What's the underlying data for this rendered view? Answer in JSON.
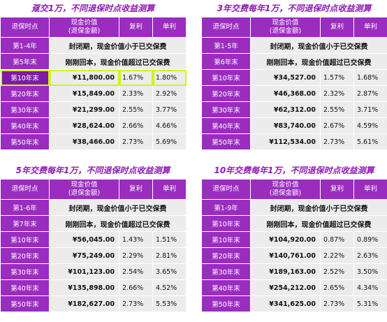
{
  "panels": [
    {
      "title": "趸交1万，不同退保时点收益测算",
      "header": {
        "time": "退保时点",
        "cash1": "现金价值",
        "cash2": "(退保金额)",
        "compound": "复利",
        "simple": "单利"
      },
      "closed": [
        {
          "label": "第1-4年",
          "msg": "封闭期，现金价值小于已交保费"
        },
        {
          "label": "第5年末",
          "msg": "刚刚回本，现金价值超过已交保费"
        }
      ],
      "rows": [
        {
          "label": "第10年末",
          "value": "¥11,800.00",
          "compound": "1.67%",
          "simple": "1.80%",
          "highlight": true
        },
        {
          "label": "第20年末",
          "value": "¥15,849.00",
          "compound": "2.33%",
          "simple": "2.92%"
        },
        {
          "label": "第30年末",
          "value": "¥21,299.00",
          "compound": "2.55%",
          "simple": "3.77%"
        },
        {
          "label": "第40年末",
          "value": "¥28,624.00",
          "compound": "2.66%",
          "simple": "4.66%"
        },
        {
          "label": "第50年末",
          "value": "¥38,466.00",
          "compound": "2.73%",
          "simple": "5.69%"
        }
      ]
    },
    {
      "title": "3年交费每年1万，不同退保时点收益测算",
      "header": {
        "time": "退保时点",
        "cash1": "现金价值",
        "cash2": "(退保金额)",
        "compound": "复利",
        "simple": "单利"
      },
      "closed": [
        {
          "label": "第1-5年",
          "msg": "封闭期，现金价值小于已交保费"
        },
        {
          "label": "第6年末",
          "msg": "刚刚回本，现金价值超过已交保费"
        }
      ],
      "rows": [
        {
          "label": "第10年末",
          "value": "¥34,527.00",
          "compound": "1.57%",
          "simple": "1.68%"
        },
        {
          "label": "第20年末",
          "value": "¥46,368.00",
          "compound": "2.32%",
          "simple": "2.87%"
        },
        {
          "label": "第30年末",
          "value": "¥62,312.00",
          "compound": "2.55%",
          "simple": "3.71%"
        },
        {
          "label": "第40年末",
          "value": "¥83,740.00",
          "compound": "2.67%",
          "simple": "4.59%"
        },
        {
          "label": "第50年末",
          "value": "¥112,534.00",
          "compound": "2.73%",
          "simple": "5.61%"
        }
      ]
    },
    {
      "title": "5年交费每年1万，不同退保时点收益测算",
      "header": {
        "time": "退保时点",
        "cash1": "现金价值",
        "cash2": "(退保金额)",
        "compound": "复利",
        "simple": "单利"
      },
      "closed": [
        {
          "label": "第1-6年",
          "msg": "封闭期，现金价值小于已交保费"
        },
        {
          "label": "第7年末",
          "msg": "刚刚回本，现金价值超过已交保费"
        }
      ],
      "rows": [
        {
          "label": "第10年末",
          "value": "¥56,045.00",
          "compound": "1.43%",
          "simple": "1.51%"
        },
        {
          "label": "第20年末",
          "value": "¥75,249.00",
          "compound": "2.29%",
          "simple": "2.81%"
        },
        {
          "label": "第30年末",
          "value": "¥101,123.00",
          "compound": "2.54%",
          "simple": "3.65%"
        },
        {
          "label": "第40年末",
          "value": "¥135,898.00",
          "compound": "2.66%",
          "simple": "4.52%"
        },
        {
          "label": "第50年末",
          "value": "¥182,627.00",
          "compound": "2.73%",
          "simple": "5.53%"
        }
      ]
    },
    {
      "title": "10年交费每年1万，不同退保时点收益测算",
      "header": {
        "time": "退保时点",
        "cash1": "现金价值",
        "cash2": "(退保金额)",
        "compound": "复利",
        "simple": "单利"
      },
      "closed": [
        {
          "label": "第1-9年",
          "msg": "封闭期，现金价值小于已交保费"
        },
        {
          "label": "第10年末",
          "msg": "刚刚回本，现金价值超过已交保费"
        }
      ],
      "rows": [
        {
          "label": "第10年末",
          "value": "¥104,920.00",
          "compound": "0.87%",
          "simple": "0.89%"
        },
        {
          "label": "第20年末",
          "value": "¥140,761.00",
          "compound": "2.22%",
          "simple": "2.63%"
        },
        {
          "label": "第30年末",
          "value": "¥189,163.00",
          "compound": "2.52%",
          "simple": "3.50%"
        },
        {
          "label": "第40年末",
          "value": "¥254,212.00",
          "compound": "2.65%",
          "simple": "4.34%"
        },
        {
          "label": "第50年末",
          "value": "¥341,625.00",
          "compound": "2.73%",
          "simple": "5.31%"
        }
      ]
    }
  ],
  "colors": {
    "header_bg": "#9A2CC0",
    "cell_bg": "#ECECEC",
    "title": "#8E1BB5",
    "highlight": "#D8EE14"
  }
}
